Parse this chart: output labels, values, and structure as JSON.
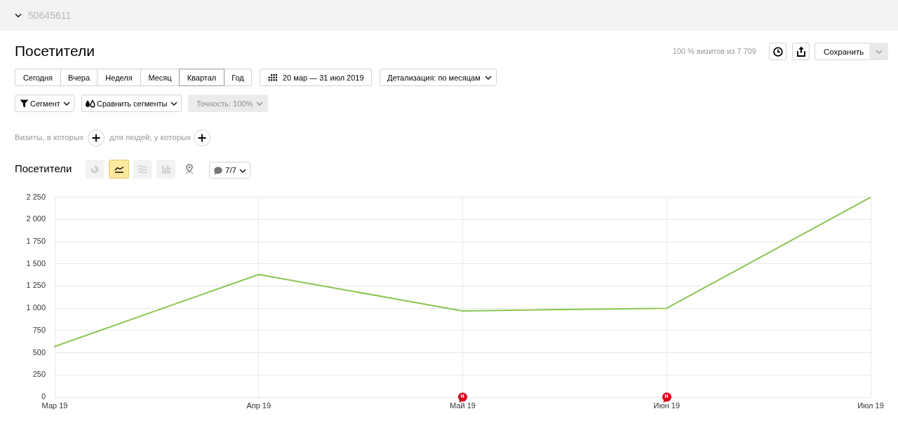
{
  "chart_data": {
    "type": "line",
    "title": "Посетители",
    "subtitle": "Посетители",
    "categories": [
      "Мар 19",
      "Апр 19",
      "Май 19",
      "Июн 19",
      "Июл 19"
    ],
    "series": [
      {
        "color": "#8cc552",
        "values": [
          570,
          1380,
          970,
          1000,
          2250
        ]
      }
    ],
    "ylim": [
      0,
      2250
    ],
    "yticks": [
      0,
      250,
      500,
      750,
      {
        "value": 1000,
        "label": "1 000"
      },
      {
        "value": 1250,
        "label": "1 250"
      },
      {
        "value": 1500,
        "label": "1 500"
      },
      {
        "value": 1750,
        "label": "1 750"
      },
      {
        "value": 2000,
        "label": "2 000"
      },
      {
        "value": 2250,
        "label": "2 250"
      }
    ],
    "grid": true,
    "legend": false,
    "marker": "none",
    "line_style": "solid",
    "annotations": [
      "50645611",
      "100 % визитов из 7 709",
      "Сохранить",
      "Сегодня",
      "Вчера",
      "Неделя",
      "Месяц",
      "Квартал",
      "Год",
      "20 мар — 31 июл 2019",
      "Детализация: по месяцам",
      "Сегмент",
      "Сравнить сегменты",
      "Точность: 100%",
      "Визиты, в которых",
      "для людей, у которых",
      "7/7",
      {
        "text": "н",
        "x": "Май 19",
        "y": 0
      },
      {
        "text": "н",
        "x": "Июн 19",
        "y": 0
      }
    ]
  }
}
